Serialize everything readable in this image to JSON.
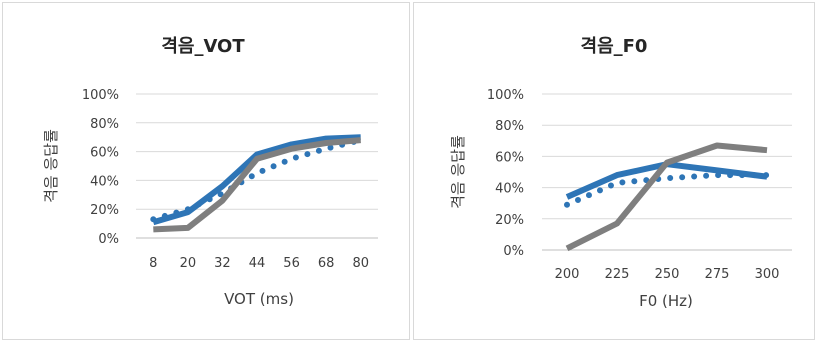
{
  "chart_data": [
    {
      "type": "line",
      "title": "격음_VOT",
      "xlabel": "VOT (ms)",
      "ylabel": "격음 응답률",
      "categories": [
        "8",
        "20",
        "32",
        "44",
        "56",
        "68",
        "80"
      ],
      "y_ticks": [
        "0%",
        "20%",
        "40%",
        "60%",
        "80%",
        "100%"
      ],
      "ylim": [
        0,
        100
      ],
      "grid": true,
      "series": [
        {
          "values": [
            11,
            18,
            36,
            58,
            65,
            69,
            70
          ],
          "color": "#2e75b6",
          "style": "solid-thick"
        },
        {
          "values": [
            13,
            20,
            31,
            45,
            55,
            62,
            68
          ],
          "color": "#2e75b6",
          "style": "dotted"
        },
        {
          "values": [
            6,
            7,
            26,
            55,
            62,
            66,
            68
          ],
          "color": "#7f7f7f",
          "style": "solid-thick"
        }
      ]
    },
    {
      "type": "line",
      "title": "격음_F0",
      "xlabel": "F0 (Hz)",
      "ylabel": "격음 응답률",
      "categories": [
        "200",
        "225",
        "250",
        "275",
        "300"
      ],
      "y_ticks": [
        "0%",
        "20%",
        "40%",
        "60%",
        "80%",
        "100%"
      ],
      "ylim": [
        0,
        100
      ],
      "grid": true,
      "series": [
        {
          "values": [
            34,
            48,
            55,
            51,
            47
          ],
          "color": "#2e75b6",
          "style": "solid-thick"
        },
        {
          "values": [
            29,
            43,
            46,
            48,
            48
          ],
          "color": "#2e75b6",
          "style": "dotted"
        },
        {
          "values": [
            1,
            17,
            56,
            67,
            64
          ],
          "color": "#7f7f7f",
          "style": "solid-thick"
        }
      ]
    }
  ]
}
